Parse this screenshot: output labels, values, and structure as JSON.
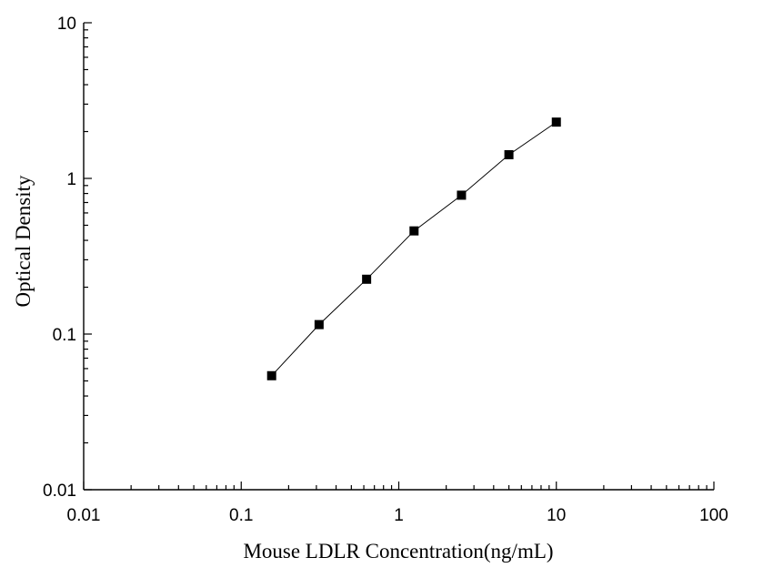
{
  "chart_data": {
    "type": "scatter",
    "xscale": "log",
    "yscale": "log",
    "xlim": [
      0.01,
      100
    ],
    "ylim": [
      0.01,
      10
    ],
    "xlabel": "Mouse LDLR Concentration(ng/mL)",
    "ylabel": "Optical Density",
    "x_ticks": [
      0.01,
      0.1,
      1,
      10,
      100
    ],
    "x_tick_labels": [
      "0.01",
      "0.1",
      "1",
      "10",
      "100"
    ],
    "y_ticks": [
      0.01,
      0.1,
      1,
      10
    ],
    "y_tick_labels": [
      "0.01",
      "0.1",
      "1",
      "10"
    ],
    "series": [
      {
        "x": [
          0.156,
          0.312,
          0.625,
          1.25,
          2.5,
          5,
          10
        ],
        "y": [
          0.054,
          0.115,
          0.225,
          0.46,
          0.78,
          1.42,
          2.3
        ],
        "marker": "square",
        "line": true,
        "color": "#000000"
      }
    ],
    "grid": false,
    "legend": "none"
  }
}
